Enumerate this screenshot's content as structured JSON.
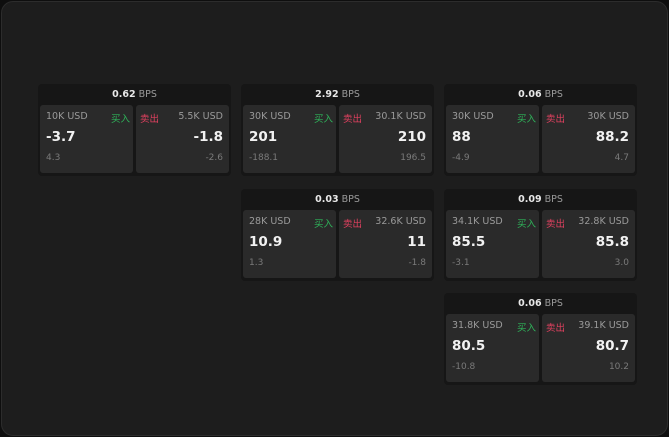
{
  "unit": "BPS",
  "buy_label": "买入",
  "sell_label": "卖出",
  "colors": {
    "buy": "#2fb45a",
    "sell": "#e0405f",
    "background": "#1d1d1d"
  },
  "cards": [
    {
      "spread": "0.62",
      "buy": {
        "size": "10K USD",
        "price": "-3.7",
        "change": "4.3"
      },
      "sell": {
        "size": "5.5K USD",
        "price": "-1.8",
        "change": "-2.6"
      }
    },
    {
      "spread": "2.92",
      "buy": {
        "size": "30K USD",
        "price": "201",
        "change": "-188.1"
      },
      "sell": {
        "size": "30.1K USD",
        "price": "210",
        "change": "196.5"
      }
    },
    {
      "spread": "0.06",
      "buy": {
        "size": "30K USD",
        "price": "88",
        "change": "-4.9"
      },
      "sell": {
        "size": "30K USD",
        "price": "88.2",
        "change": "4.7"
      }
    },
    {
      "spread": "0.03",
      "buy": {
        "size": "28K USD",
        "price": "10.9",
        "change": "1.3"
      },
      "sell": {
        "size": "32.6K USD",
        "price": "11",
        "change": "-1.8"
      }
    },
    {
      "spread": "0.09",
      "buy": {
        "size": "34.1K USD",
        "price": "85.5",
        "change": "-3.1"
      },
      "sell": {
        "size": "32.8K USD",
        "price": "85.8",
        "change": "3.0"
      }
    },
    {
      "spread": "0.06",
      "buy": {
        "size": "31.8K USD",
        "price": "80.5",
        "change": "-10.8"
      },
      "sell": {
        "size": "39.1K USD",
        "price": "80.7",
        "change": "10.2"
      }
    }
  ]
}
